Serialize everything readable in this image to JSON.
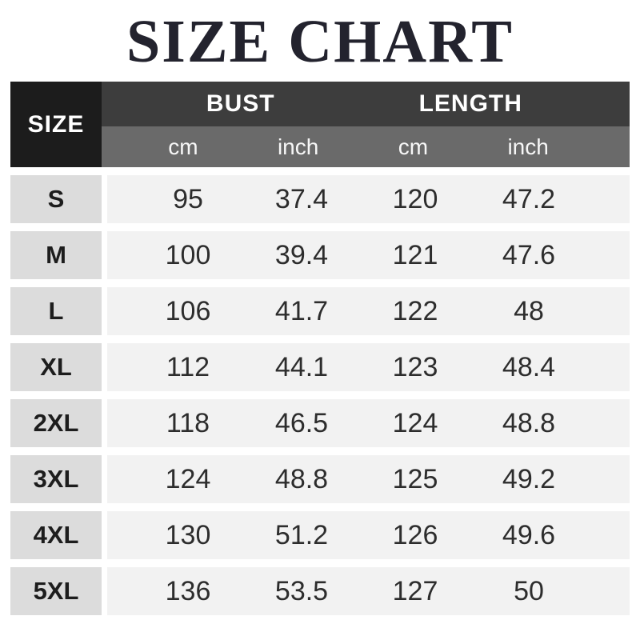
{
  "title": "SIZE CHART",
  "header": {
    "size_label": "SIZE",
    "group_labels": [
      "BUST",
      "LENGTH"
    ],
    "unit_labels": [
      "cm",
      "inch",
      "cm",
      "inch"
    ]
  },
  "chart_data": {
    "type": "table",
    "title": "SIZE CHART",
    "columns": [
      "SIZE",
      "BUST (cm)",
      "BUST (inch)",
      "LENGTH (cm)",
      "LENGTH (inch)"
    ],
    "rows": [
      [
        "S",
        "95",
        "37.4",
        "120",
        "47.2"
      ],
      [
        "M",
        "100",
        "39.4",
        "121",
        "47.6"
      ],
      [
        "L",
        "106",
        "41.7",
        "122",
        "48"
      ],
      [
        "XL",
        "112",
        "44.1",
        "123",
        "48.4"
      ],
      [
        "2XL",
        "118",
        "46.5",
        "124",
        "48.8"
      ],
      [
        "3XL",
        "124",
        "48.8",
        "125",
        "49.2"
      ],
      [
        "4XL",
        "130",
        "51.2",
        "126",
        "49.6"
      ],
      [
        "5XL",
        "136",
        "53.5",
        "127",
        "50"
      ]
    ]
  },
  "colors": {
    "title_text": "#23232e",
    "header_size_bg": "#1c1c1c",
    "header_group_bg": "#3d3d3d",
    "header_unit_bg": "#6a6a6a",
    "row_label_bg": "#dcdcdc",
    "row_data_bg": "#f2f2f2",
    "header_text": "#ffffff",
    "body_text": "#2d2d2d"
  }
}
